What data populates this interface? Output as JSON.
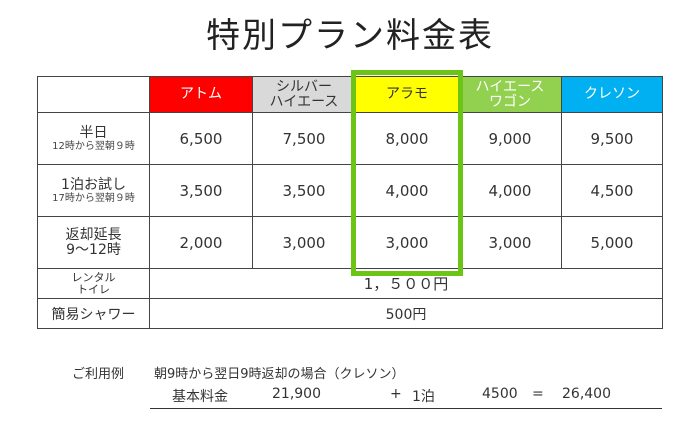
{
  "title": "特別プラン料金表",
  "colors": {
    "atom": "#ff0000",
    "silver": "#d9d9d9",
    "alamo": "#ffff00",
    "hiace_wagon": "#92d050",
    "crayon": "#00b0f0",
    "highlight": "#6cc417"
  },
  "table": {
    "headers": [
      {
        "line1": "アトム",
        "line2": ""
      },
      {
        "line1": "シルバー",
        "line2": "ハイエース"
      },
      {
        "line1": "アラモ",
        "line2": ""
      },
      {
        "line1": "ハイエース",
        "line2": "ワゴン"
      },
      {
        "line1": "クレソン",
        "line2": ""
      }
    ],
    "rows": [
      {
        "label": "半日",
        "sub": "12時から翌朝９時",
        "values": [
          "6,500",
          "7,500",
          "8,000",
          "9,000",
          "9,500"
        ]
      },
      {
        "label": "1泊お試し",
        "sub": "17時から翌朝９時",
        "values": [
          "3,500",
          "3,500",
          "4,000",
          "4,000",
          "4,500"
        ]
      },
      {
        "label": "返却延長",
        "sub": "9～12時",
        "values": [
          "2,000",
          "3,000",
          "3,000",
          "3,000",
          "5,000"
        ]
      }
    ],
    "toilet": {
      "label1": "レンタル",
      "label2": "トイレ",
      "value": "1，５００円"
    },
    "shower": {
      "label": "簡易シャワー",
      "value": "500円"
    }
  },
  "example": {
    "label": "ご利用例",
    "description": "朝9時から翌日9時返却の場合（クレソン）",
    "base_label": "基本料金",
    "base_value": "21,900",
    "plus": "+",
    "nights": "1泊",
    "night_value": "4500",
    "equals": "=",
    "total": "26,400"
  }
}
